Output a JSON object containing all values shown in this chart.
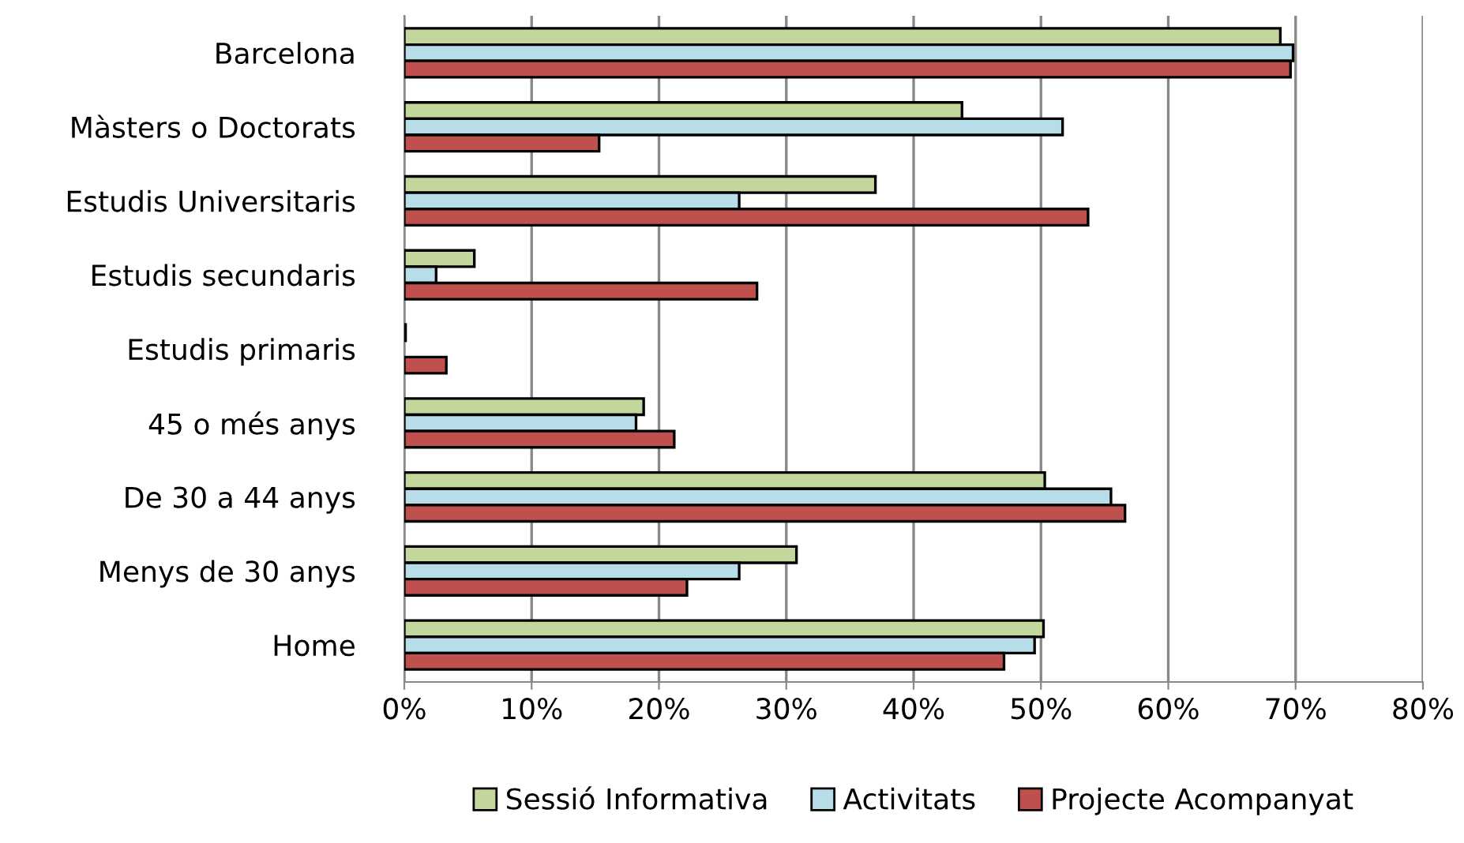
{
  "chart_data": {
    "type": "bar",
    "orientation": "horizontal",
    "categories": [
      "Barcelona",
      "Màsters o Doctorats",
      "Estudis Universitaris",
      "Estudis secundaris",
      "Estudis primaris",
      "45 o més anys",
      "De 30 a 44 anys",
      "Menys de 30 anys",
      "Home"
    ],
    "series": [
      {
        "name": "Sessió Informativa",
        "color": "#c3d69b",
        "values": [
          68.8,
          43.8,
          37.0,
          5.5,
          0.1,
          18.8,
          50.3,
          30.8,
          50.2
        ]
      },
      {
        "name": "Activitats",
        "color": "#b7dee8",
        "values": [
          69.8,
          51.7,
          26.3,
          2.5,
          null,
          18.2,
          55.5,
          26.3,
          49.5
        ]
      },
      {
        "name": "Projecte Acompanyat",
        "color": "#c0504d",
        "values": [
          69.6,
          15.3,
          53.7,
          27.7,
          3.3,
          21.2,
          56.6,
          22.2,
          47.1
        ]
      }
    ],
    "xlim": [
      0,
      80
    ],
    "xticks": [
      {
        "value": 0,
        "label": "0%"
      },
      {
        "value": 10,
        "label": "10%"
      },
      {
        "value": 20,
        "label": "20%"
      },
      {
        "value": 30,
        "label": "30%"
      },
      {
        "value": 40,
        "label": "40%"
      },
      {
        "value": 50,
        "label": "50%"
      },
      {
        "value": 60,
        "label": "60%"
      },
      {
        "value": 70,
        "label": "70%"
      },
      {
        "value": 80,
        "label": "80%"
      }
    ],
    "grid": "x",
    "legend": "bottom"
  }
}
